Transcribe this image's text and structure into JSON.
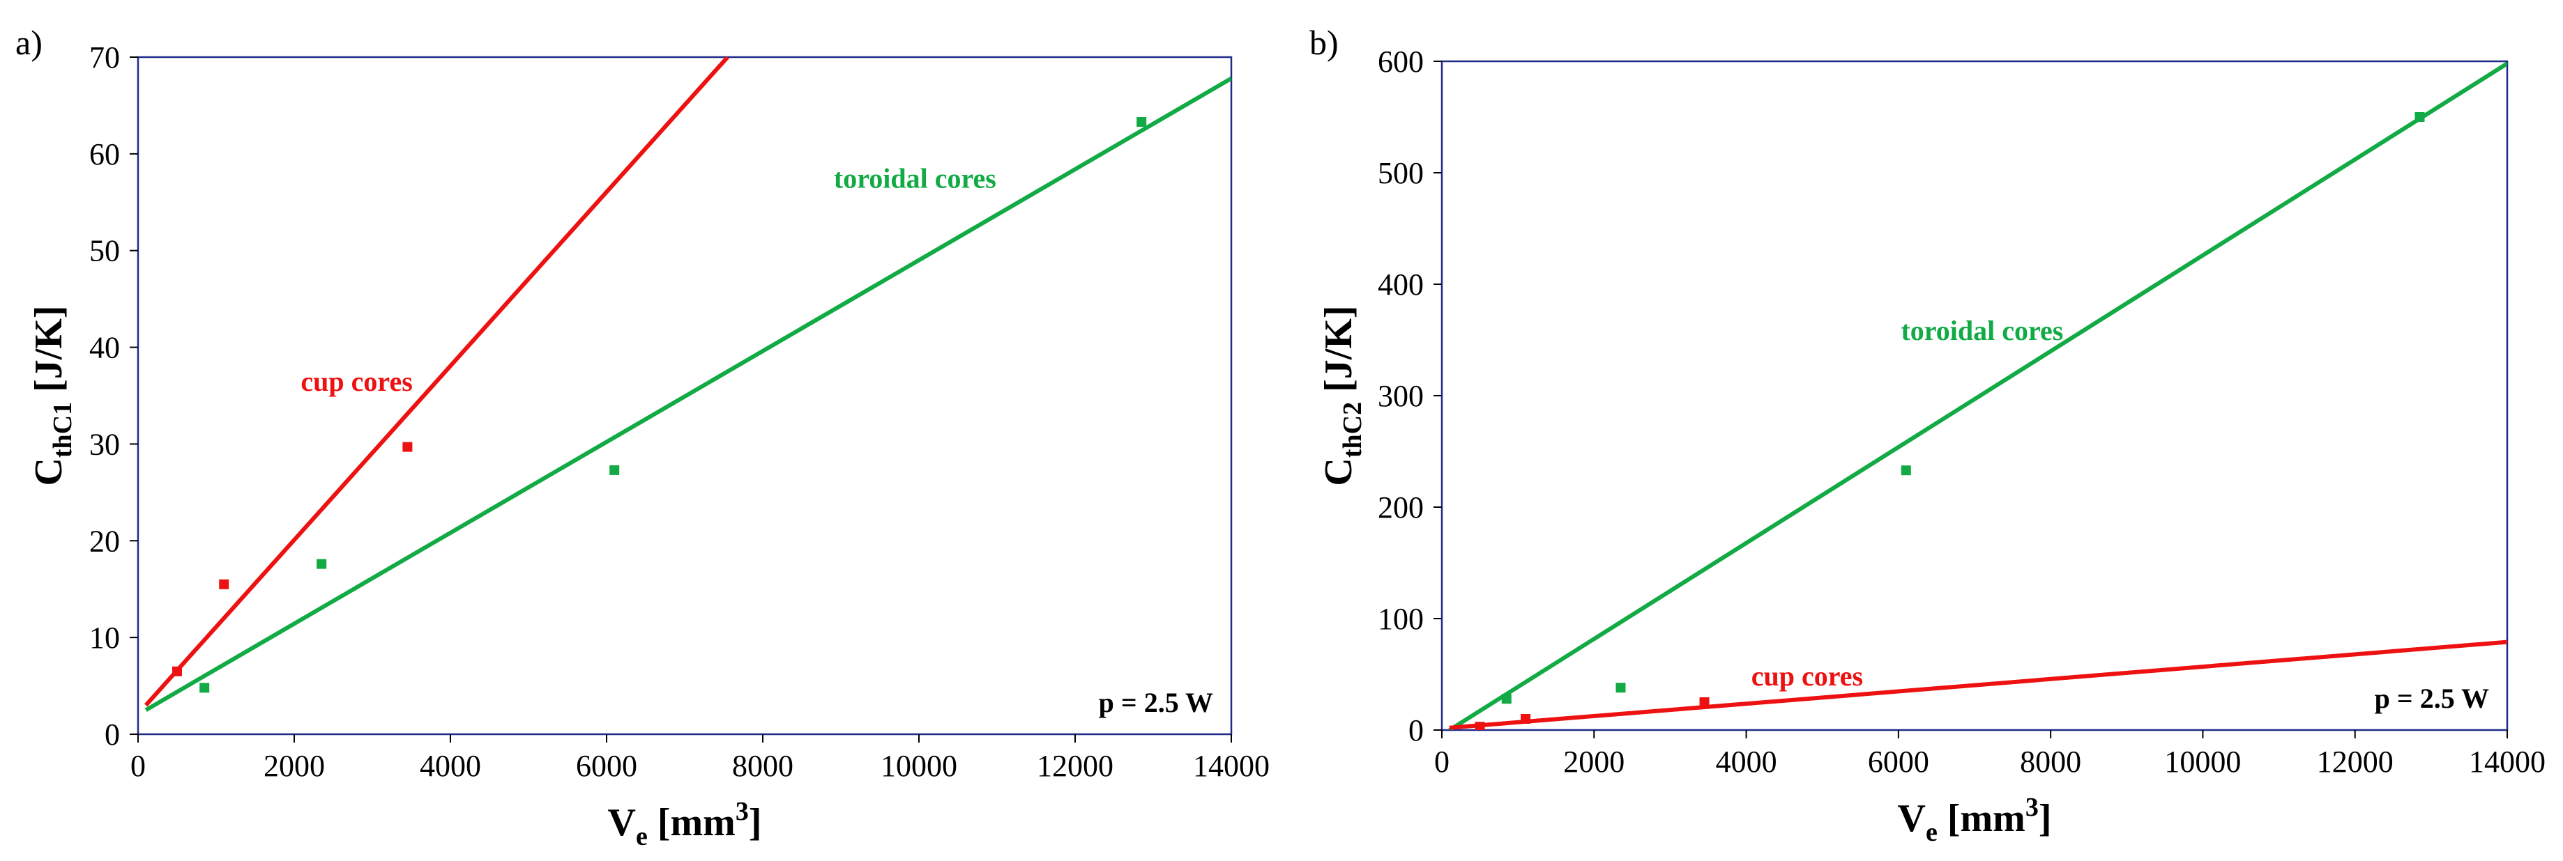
{
  "chart_data": [
    {
      "type": "scatter",
      "panel_label": "a)",
      "xlabel": {
        "main": "V",
        "sub": "e",
        "unit_pre": " [mm",
        "unit_sup": "3",
        "unit_post": "]"
      },
      "ylabel": {
        "main": "C",
        "sub": "thC1",
        "unit": " [J/K]"
      },
      "xlim": [
        0,
        14000
      ],
      "ylim": [
        0,
        70
      ],
      "x_ticks": [
        0,
        2000,
        4000,
        6000,
        8000,
        10000,
        12000,
        14000
      ],
      "y_ticks": [
        0,
        10,
        20,
        30,
        40,
        50,
        60,
        70
      ],
      "grid": false,
      "series": [
        {
          "name": "cup cores",
          "color": "#ee1111",
          "points": [
            [
              500,
              6.5
            ],
            [
              1100,
              15.5
            ],
            [
              3450,
              29.7
            ]
          ],
          "fit_line": [
            [
              100,
              3.0
            ],
            [
              7550,
              70
            ]
          ]
        },
        {
          "name": "toroidal cores",
          "color": "#11aa44",
          "points": [
            [
              850,
              4.8
            ],
            [
              2350,
              17.6
            ],
            [
              6100,
              27.3
            ],
            [
              12850,
              63.3
            ]
          ],
          "fit_line": [
            [
              100,
              2.5
            ],
            [
              14000,
              67.8
            ]
          ]
        }
      ],
      "annotations": [
        {
          "text": "cup cores",
          "color": "#ee1111",
          "x": 2800,
          "y": 35.5
        },
        {
          "text": "toroidal cores",
          "color": "#11aa44",
          "x": 9950,
          "y": 56.5
        }
      ],
      "note": "p = 2.5 W"
    },
    {
      "type": "scatter",
      "panel_label": "b)",
      "xlabel": {
        "main": "V",
        "sub": "e",
        "unit_pre": " [mm",
        "unit_sup": "3",
        "unit_post": "]"
      },
      "ylabel": {
        "main": "C",
        "sub": "thC2",
        "unit": " [J/K]"
      },
      "xlim": [
        0,
        14000
      ],
      "ylim": [
        0,
        600
      ],
      "x_ticks": [
        0,
        2000,
        4000,
        6000,
        8000,
        10000,
        12000,
        14000
      ],
      "y_ticks": [
        0,
        100,
        200,
        300,
        400,
        500,
        600
      ],
      "grid": false,
      "series": [
        {
          "name": "toroidal cores",
          "color": "#11aa44",
          "points": [
            [
              850,
              28
            ],
            [
              2350,
              38
            ],
            [
              6100,
              233
            ],
            [
              12850,
              550
            ]
          ],
          "fit_line": [
            [
              100,
              0
            ],
            [
              14000,
              598
            ]
          ]
        },
        {
          "name": "cup cores",
          "color": "#ee1111",
          "points": [
            [
              500,
              3
            ],
            [
              1100,
              10
            ],
            [
              3450,
              25
            ]
          ],
          "fit_line": [
            [
              100,
              2
            ],
            [
              14000,
              79
            ]
          ]
        }
      ],
      "annotations": [
        {
          "text": "toroidal cores",
          "color": "#11aa44",
          "x": 7100,
          "y": 350
        },
        {
          "text": "cup cores",
          "color": "#ee1111",
          "x": 4800,
          "y": 40
        }
      ],
      "note": "p = 2.5 W"
    }
  ]
}
